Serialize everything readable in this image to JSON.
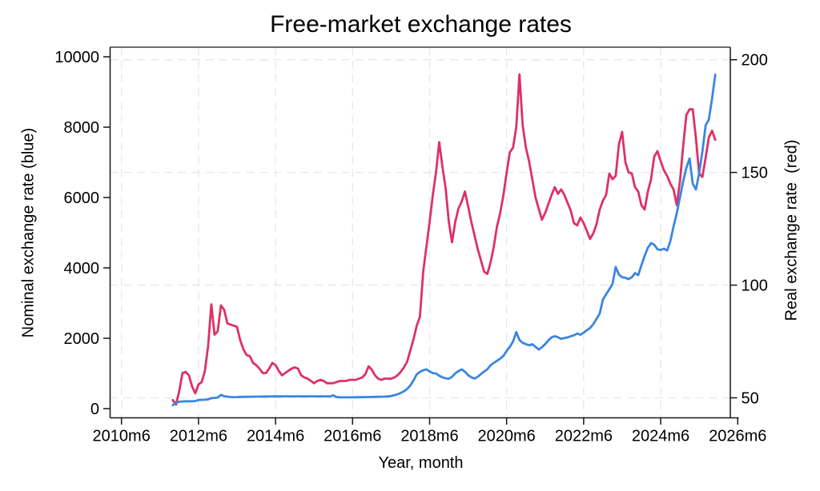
{
  "title": "Free-market exchange rates",
  "axes": {
    "left": {
      "label": "Nominal exchange rate (blue)",
      "ticks": [
        0,
        2000,
        4000,
        6000,
        8000,
        10000
      ]
    },
    "right": {
      "label": "Real exchange rate  (red)",
      "ticks": [
        50,
        100,
        150,
        200
      ]
    },
    "x": {
      "label": "Year, month",
      "tick_labels": [
        "2010m6",
        "2012m6",
        "2014m6",
        "2016m6",
        "2018m6",
        "2020m6",
        "2022m6",
        "2024m6",
        "2026m6"
      ],
      "tick_interval_months": 24
    }
  },
  "chart_data": {
    "type": "line",
    "title": "Free-market exchange rates",
    "xlabel": "Year, month",
    "x_first_tick": "2010m6",
    "x_tick_interval_months": 24,
    "x_axis_range": [
      "2010m6",
      "2026m6"
    ],
    "series_start": "2011m10",
    "series_start_offset_months": 16,
    "grid": {
      "style": "dashed",
      "color": "#e7e7e7",
      "vertical_at_x_ticks": true,
      "horizontal_at_right_ticks": true
    },
    "left_axis": {
      "label": "Nominal exchange rate (blue)",
      "ticks": [
        0,
        2000,
        4000,
        6000,
        8000,
        10000
      ],
      "range": [
        0,
        10000
      ]
    },
    "right_axis": {
      "label": "Real exchange rate  (red)",
      "ticks": [
        50,
        100,
        150,
        200
      ],
      "range": [
        45,
        200
      ]
    },
    "legend": "none (series identified by color in axis titles)",
    "series": [
      {
        "name": "Nominal exchange rate",
        "axis": "left",
        "color": "#3a86e0",
        "frequency": "monthly",
        "values": [
          100,
          170,
          195,
          205,
          210,
          210,
          212,
          215,
          245,
          250,
          255,
          262,
          300,
          305,
          315,
          390,
          355,
          340,
          330,
          328,
          330,
          333,
          335,
          337,
          338,
          340,
          342,
          343,
          344,
          345,
          346,
          347,
          348,
          348,
          348,
          349,
          350,
          350,
          350,
          350,
          350,
          350,
          350,
          350,
          349,
          349,
          349,
          349,
          349,
          348,
          380,
          330,
          322,
          320,
          320,
          321,
          322,
          323,
          324,
          326,
          328,
          330,
          332,
          334,
          336,
          338,
          342,
          348,
          360,
          380,
          410,
          445,
          490,
          560,
          660,
          800,
          975,
          1045,
          1090,
          1115,
          1060,
          1010,
          1000,
          935,
          890,
          862,
          850,
          905,
          1000,
          1065,
          1115,
          1050,
          950,
          890,
          855,
          905,
          985,
          1055,
          1120,
          1230,
          1300,
          1360,
          1420,
          1500,
          1640,
          1760,
          1910,
          2175,
          1950,
          1870,
          1835,
          1800,
          1830,
          1760,
          1680,
          1745,
          1835,
          1940,
          2025,
          2060,
          2030,
          1985,
          2005,
          2025,
          2060,
          2085,
          2135,
          2100,
          2160,
          2230,
          2290,
          2400,
          2550,
          2700,
          3100,
          3250,
          3390,
          3545,
          4025,
          3810,
          3735,
          3720,
          3680,
          3735,
          3850,
          3795,
          4075,
          4340,
          4570,
          4705,
          4660,
          4530,
          4510,
          4545,
          4495,
          4760,
          5175,
          5550,
          6000,
          6460,
          6840,
          7110,
          6390,
          6230,
          6690,
          7300,
          8050,
          8220,
          8810,
          9490
        ]
      },
      {
        "name": "Real exchange rate",
        "axis": "right",
        "color": "#dd3166",
        "frequency": "monthly",
        "values": [
          49,
          47,
          53,
          61,
          61.5,
          60,
          55,
          52,
          56,
          57,
          62,
          73,
          91.5,
          78,
          79.5,
          91,
          89,
          83,
          82.5,
          82,
          81.5,
          75.5,
          71.5,
          69,
          68.5,
          65.5,
          64.5,
          63,
          61,
          61,
          63,
          65.5,
          64.5,
          62,
          60,
          61,
          62,
          63,
          63.5,
          63,
          60,
          59,
          58.5,
          57.5,
          56.5,
          57.5,
          58,
          57.5,
          56.5,
          56.5,
          56.5,
          57,
          57.5,
          57.5,
          57.5,
          58,
          58,
          58,
          58.5,
          59,
          60.5,
          64,
          62.5,
          60,
          58.5,
          58,
          58.5,
          58.5,
          58.5,
          59,
          60,
          61.5,
          63.5,
          66,
          71,
          76,
          82,
          86,
          106,
          117,
          128,
          140,
          150,
          163.5,
          152.5,
          143,
          128,
          119,
          128,
          134,
          137,
          141.5,
          135,
          128,
          122,
          116,
          111,
          106,
          105,
          110,
          117,
          126,
          132,
          140,
          150,
          159,
          161,
          170,
          193.5,
          171,
          161,
          155,
          147,
          139,
          134,
          129,
          132,
          136,
          140,
          143.5,
          140.5,
          142.5,
          140,
          136.5,
          133,
          127.5,
          126.5,
          130,
          127.5,
          124,
          120.5,
          123,
          127,
          133.5,
          137.5,
          140,
          149.5,
          147,
          148.5,
          162.5,
          168,
          154.5,
          150,
          149.5,
          143.5,
          141.5,
          135.5,
          133.5,
          141.5,
          147,
          157,
          159.5,
          155,
          151,
          148.5,
          145,
          142.5,
          135.5,
          146,
          161.5,
          175.5,
          178,
          178,
          165,
          149.5,
          148,
          156.5,
          165.5,
          168.5,
          164.5
        ]
      }
    ]
  }
}
